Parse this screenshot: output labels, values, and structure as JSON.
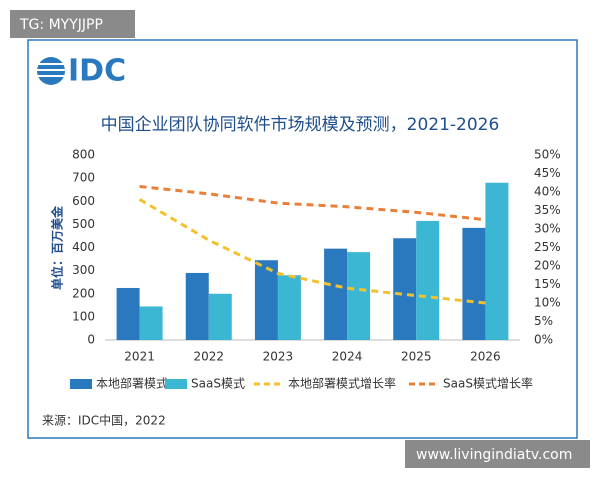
{
  "badge": "TG: MYYJJPP",
  "logo": "IDC",
  "watermark": "www.livingindiatv.com",
  "chart_data": {
    "type": "bar",
    "title": "中国企业团队协同软件市场规模及预测，2021-2026",
    "y_label": "单位：百万美金",
    "source": "来源：IDC中国，2022",
    "categories": [
      "2021",
      "2022",
      "2023",
      "2024",
      "2025",
      "2026"
    ],
    "series": [
      {
        "name": "本地部署模式",
        "color": "#2a78be",
        "type": "bar",
        "values": [
          225,
          290,
          345,
          395,
          440,
          485
        ]
      },
      {
        "name": "SaaS模式",
        "color": "#3bb6d3",
        "type": "bar",
        "values": [
          145,
          200,
          280,
          380,
          515,
          680
        ]
      },
      {
        "name": "本地部署模式增长率",
        "color": "#f2c12e",
        "type": "line",
        "axis": "y2",
        "values": [
          38,
          27,
          18,
          14,
          12,
          10
        ]
      },
      {
        "name": "SaaS模式增长率",
        "color": "#e8803a",
        "type": "line",
        "axis": "y2",
        "values": [
          41.5,
          39.5,
          37,
          36,
          34.5,
          32.5
        ]
      }
    ],
    "ylim": [
      0,
      800
    ],
    "yticks": [
      0,
      100,
      200,
      300,
      400,
      500,
      600,
      700,
      800
    ],
    "y2lim": [
      0,
      50
    ],
    "y2ticks": [
      {
        "value": 0,
        "label": "0%"
      },
      {
        "value": 5,
        "label": "5%"
      },
      {
        "value": 10,
        "label": "10%"
      },
      {
        "value": 15,
        "label": "15%"
      },
      {
        "value": 20,
        "label": "20%"
      },
      {
        "value": 25,
        "label": "25%"
      },
      {
        "value": 30,
        "label": "30%"
      },
      {
        "value": 35,
        "label": "35%"
      },
      {
        "value": 40,
        "label": "40%"
      },
      {
        "value": 45,
        "label": "45%"
      },
      {
        "value": 50,
        "label": "50%"
      }
    ],
    "legend": "bottom"
  }
}
